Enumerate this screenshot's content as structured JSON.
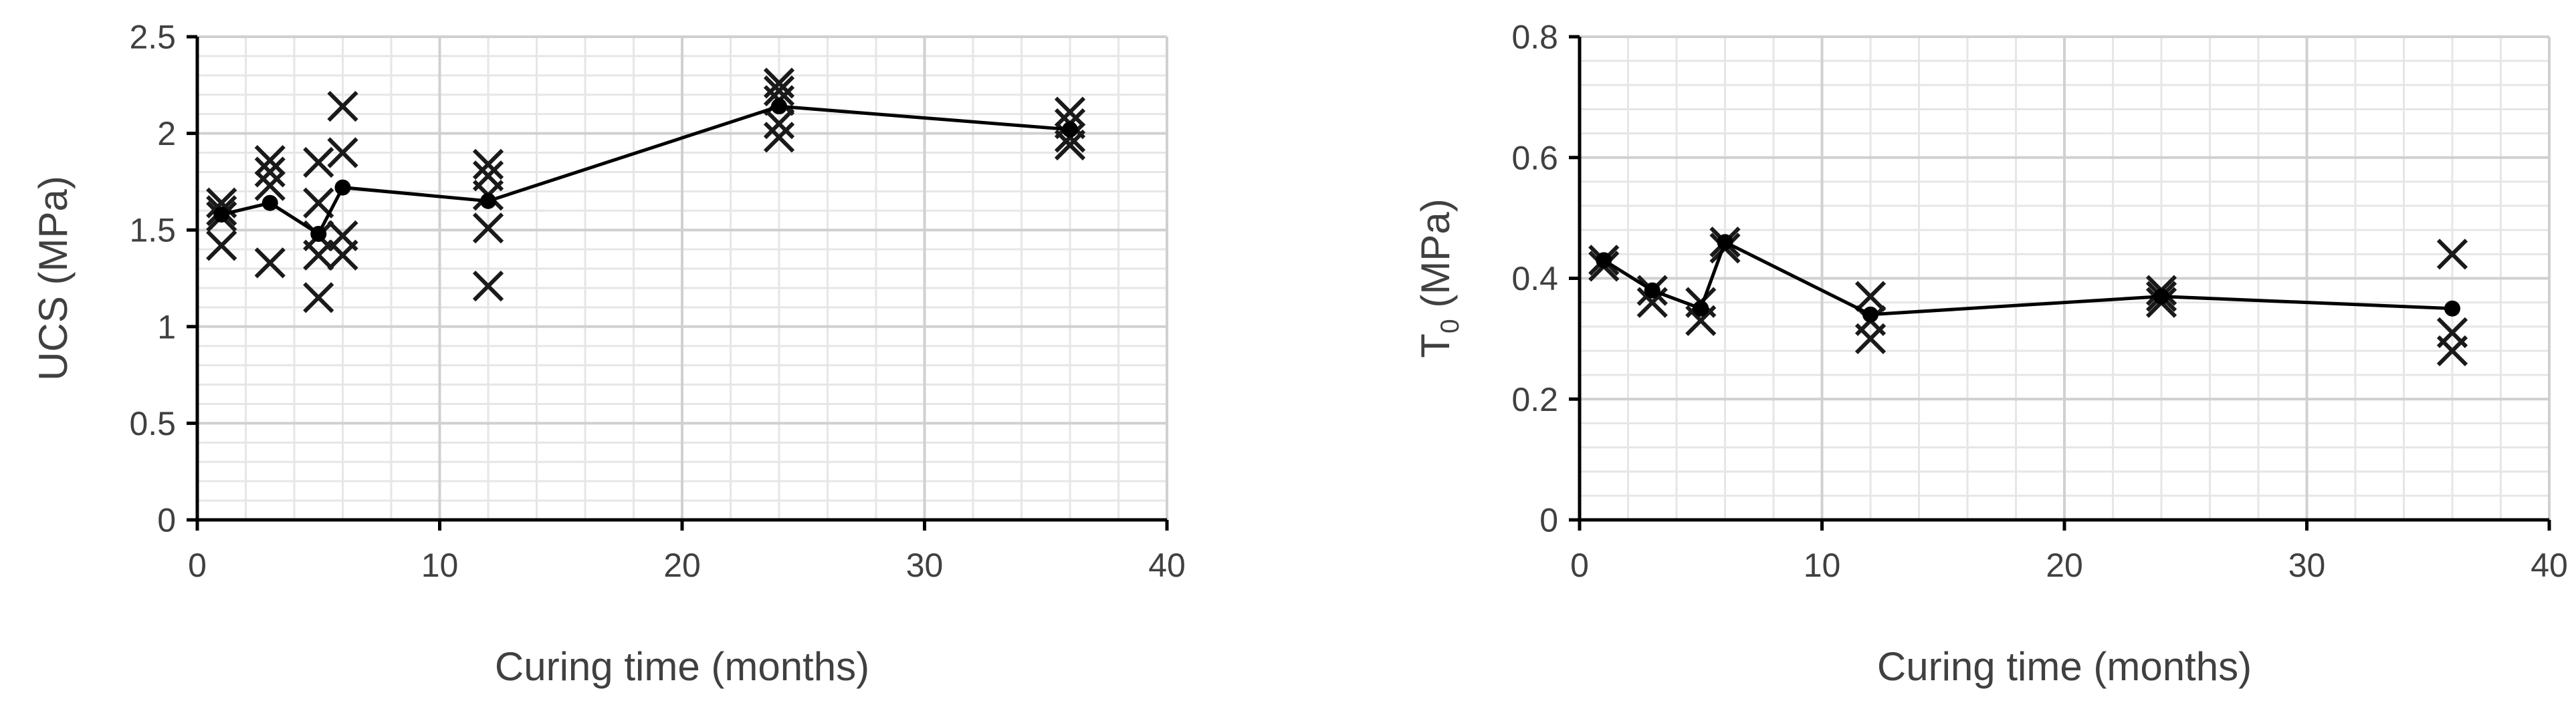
{
  "chart_data": [
    {
      "type": "scatter",
      "ylabel": "UCS (MPa)",
      "xlabel": "Curing time (months)",
      "xlim": [
        0,
        40
      ],
      "ylim": [
        0,
        2.5
      ],
      "x_ticks": [
        "0",
        "10",
        "20",
        "30",
        "40"
      ],
      "y_ticks": [
        "0",
        "0.5",
        "1",
        "1.5",
        "2",
        "2.5"
      ],
      "grid": true,
      "series": [
        {
          "marker": "x",
          "points": [
            {
              "x": 1,
              "y": 1.42
            },
            {
              "x": 1,
              "y": 1.57
            },
            {
              "x": 1,
              "y": 1.6
            },
            {
              "x": 1,
              "y": 1.64
            },
            {
              "x": 3,
              "y": 1.33
            },
            {
              "x": 3,
              "y": 1.73
            },
            {
              "x": 3,
              "y": 1.8
            },
            {
              "x": 3,
              "y": 1.86
            },
            {
              "x": 5,
              "y": 1.15
            },
            {
              "x": 5,
              "y": 1.37
            },
            {
              "x": 5,
              "y": 1.47
            },
            {
              "x": 5,
              "y": 1.64
            },
            {
              "x": 5,
              "y": 1.85
            },
            {
              "x": 6,
              "y": 1.37
            },
            {
              "x": 6,
              "y": 1.47
            },
            {
              "x": 6,
              "y": 1.9
            },
            {
              "x": 6,
              "y": 2.14
            },
            {
              "x": 12,
              "y": 1.21
            },
            {
              "x": 12,
              "y": 1.51
            },
            {
              "x": 12,
              "y": 1.68
            },
            {
              "x": 12,
              "y": 1.78
            },
            {
              "x": 12,
              "y": 1.84
            },
            {
              "x": 24,
              "y": 1.98
            },
            {
              "x": 24,
              "y": 2.05
            },
            {
              "x": 24,
              "y": 2.17
            },
            {
              "x": 24,
              "y": 2.22
            },
            {
              "x": 24,
              "y": 2.26
            },
            {
              "x": 36,
              "y": 1.94
            },
            {
              "x": 36,
              "y": 1.98
            },
            {
              "x": 36,
              "y": 2.05
            },
            {
              "x": 36,
              "y": 2.11
            }
          ]
        },
        {
          "marker": "dot-line",
          "points": [
            {
              "x": 1,
              "y": 1.58
            },
            {
              "x": 3,
              "y": 1.64
            },
            {
              "x": 5,
              "y": 1.48
            },
            {
              "x": 6,
              "y": 1.72
            },
            {
              "x": 12,
              "y": 1.65
            },
            {
              "x": 24,
              "y": 2.14
            },
            {
              "x": 36,
              "y": 2.02
            }
          ]
        }
      ]
    },
    {
      "type": "scatter",
      "ylabel": "T0 (MPa)",
      "ylabel_main": "T",
      "ylabel_sub": "0",
      "ylabel_rest": " (MPa)",
      "xlabel": "Curing time (months)",
      "xlim": [
        0,
        40
      ],
      "ylim": [
        0,
        0.8
      ],
      "x_ticks": [
        "0",
        "10",
        "20",
        "30",
        "40"
      ],
      "y_ticks": [
        "0",
        "0.2",
        "0.4",
        "0.6",
        "0.8"
      ],
      "grid": true,
      "series": [
        {
          "marker": "x",
          "points": [
            {
              "x": 1,
              "y": 0.42
            },
            {
              "x": 1,
              "y": 0.43
            },
            {
              "x": 3,
              "y": 0.36
            },
            {
              "x": 3,
              "y": 0.38
            },
            {
              "x": 5,
              "y": 0.33
            },
            {
              "x": 5,
              "y": 0.36
            },
            {
              "x": 6,
              "y": 0.45
            },
            {
              "x": 6,
              "y": 0.46
            },
            {
              "x": 12,
              "y": 0.3
            },
            {
              "x": 12,
              "y": 0.33
            },
            {
              "x": 12,
              "y": 0.37
            },
            {
              "x": 24,
              "y": 0.36
            },
            {
              "x": 24,
              "y": 0.37
            },
            {
              "x": 24,
              "y": 0.38
            },
            {
              "x": 36,
              "y": 0.28
            },
            {
              "x": 36,
              "y": 0.31
            },
            {
              "x": 36,
              "y": 0.44
            }
          ]
        },
        {
          "marker": "dot-line",
          "points": [
            {
              "x": 1,
              "y": 0.43
            },
            {
              "x": 3,
              "y": 0.38
            },
            {
              "x": 5,
              "y": 0.35
            },
            {
              "x": 6,
              "y": 0.46
            },
            {
              "x": 12,
              "y": 0.34
            },
            {
              "x": 24,
              "y": 0.37
            },
            {
              "x": 36,
              "y": 0.35
            }
          ]
        }
      ]
    }
  ]
}
